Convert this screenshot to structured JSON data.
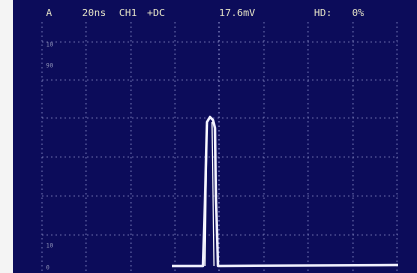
{
  "header": {
    "channel": "A",
    "timebase": "20ns",
    "input": "CH1",
    "coupling": "+DC",
    "trigger_level": "17.6mV",
    "hd_label": "HD:",
    "hd_value": "0%"
  },
  "scale_labels": [
    "10",
    "90",
    "10",
    "0"
  ]
}
